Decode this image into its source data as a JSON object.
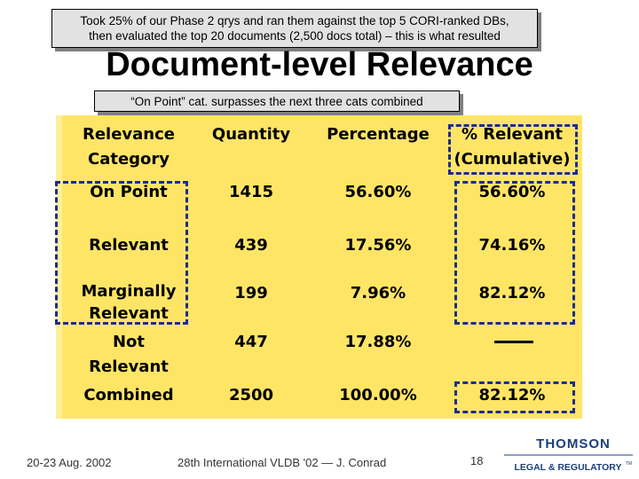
{
  "note": {
    "line1": "Took 25% of our Phase 2 qrys and ran them against the top 5 CORI-ranked DBs,",
    "line2": "then evaluated the top 20 documents (2,500 docs total) – this is what resulted"
  },
  "title": "Document-level Relevance",
  "subtitle": "“On Point” cat. surpasses the next three cats combined",
  "table": {
    "headers": {
      "category": [
        "Relevance",
        "Category"
      ],
      "quantity": "Quantity",
      "percentage": "Percentage",
      "cumulative": [
        "% Relevant",
        "(Cumulative)"
      ]
    },
    "rows": [
      {
        "category": [
          "On Point"
        ],
        "quantity": "1415",
        "percentage": "56.60%",
        "cumulative": "56.60%"
      },
      {
        "category": [
          "Relevant"
        ],
        "quantity": "439",
        "percentage": "17.56%",
        "cumulative": "74.16%"
      },
      {
        "category": [
          "Marginally",
          "Relevant"
        ],
        "quantity": "199",
        "percentage": "7.96%",
        "cumulative": "82.12%"
      },
      {
        "category": [
          "Not",
          "Relevant"
        ],
        "quantity": "447",
        "percentage": "17.88%",
        "cumulative": ""
      },
      {
        "category": [
          "Combined"
        ],
        "quantity": "2500",
        "percentage": "100.00%",
        "cumulative": "82.12%"
      }
    ]
  },
  "footer": {
    "date": "20-23 Aug. 2002",
    "conference": "28th International VLDB '02  —  J. Conrad",
    "page": "18"
  },
  "logo": {
    "name": "THOMSON",
    "tagline": "LEGAL & REGULATORY",
    "tm": "TM"
  },
  "colors": {
    "panel": "#ffe566",
    "dash": "#1c2d8c",
    "logo": "#1c3f7a"
  }
}
